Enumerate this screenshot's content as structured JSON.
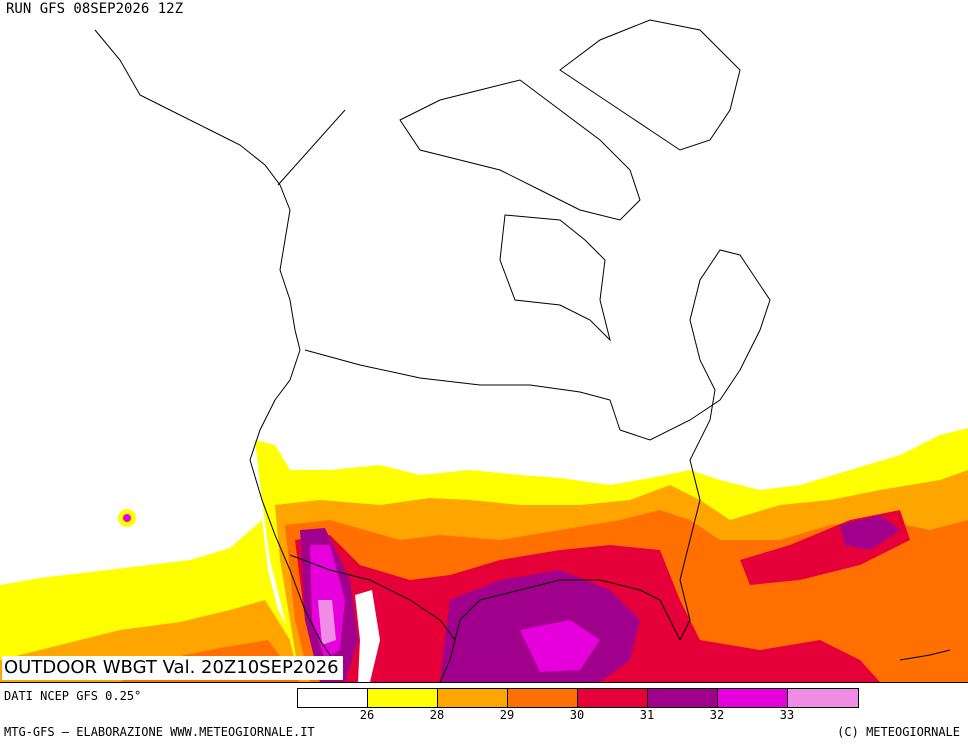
{
  "run_label": "RUN GFS 08SEP2026 12Z",
  "product_title": "OUTDOOR WBGT Val. 20Z10SEP2026",
  "data_source": "DATI NCEP GFS 0.25°",
  "footer_left": "MTG-GFS – ELABORAZIONE WWW.METEOGIORNALE.IT",
  "footer_right": "(C) METEOGIORNALE",
  "legend": {
    "colors": [
      "#ffffff",
      "#ffff00",
      "#ffa500",
      "#ff7000",
      "#e6003a",
      "#a0008c",
      "#e600dc",
      "#f08ce6"
    ],
    "labels": [
      "26",
      "28",
      "29",
      "30",
      "31",
      "32",
      "33"
    ]
  },
  "colors": {
    "land_outline": "#000000",
    "background": "#ffffff"
  }
}
